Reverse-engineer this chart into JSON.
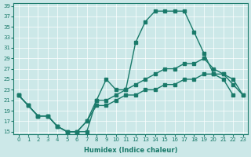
{
  "xlabel": "Humidex (Indice chaleur)",
  "bg_color": "#cce8e8",
  "line_color": "#1a7a6a",
  "xlim": [
    0,
    23
  ],
  "ylim": [
    15,
    39
  ],
  "xticks": [
    0,
    1,
    2,
    3,
    4,
    5,
    6,
    7,
    8,
    9,
    10,
    11,
    12,
    13,
    14,
    15,
    16,
    17,
    18,
    19,
    20,
    21,
    22,
    23
  ],
  "yticks": [
    15,
    17,
    19,
    21,
    23,
    25,
    27,
    29,
    31,
    33,
    35,
    37,
    39
  ],
  "line1_x": [
    0,
    1,
    2,
    3,
    4,
    5,
    6,
    7,
    8,
    9,
    10,
    11,
    12,
    13,
    14,
    15,
    16,
    17,
    18,
    19,
    20,
    21,
    22,
    23
  ],
  "line1_y": [
    22,
    20,
    18,
    18,
    16,
    15,
    15,
    15,
    21,
    25,
    23,
    23,
    32,
    36,
    38,
    38,
    38,
    38,
    34,
    30,
    26,
    25,
    22,
    null
  ],
  "line2_x": [
    0,
    1,
    2,
    3,
    4,
    5,
    6,
    7,
    8,
    9,
    10,
    11,
    12,
    13,
    14,
    15,
    16,
    17,
    18,
    19,
    20,
    21,
    22,
    23
  ],
  "line2_y": [
    22,
    20,
    18,
    18,
    16,
    15,
    15,
    17,
    21,
    21,
    22,
    23,
    24,
    25,
    26,
    27,
    27,
    28,
    28,
    29,
    27,
    26,
    24,
    22
  ],
  "line3_x": [
    0,
    1,
    2,
    3,
    4,
    5,
    6,
    7,
    8,
    9,
    10,
    11,
    12,
    13,
    14,
    15,
    16,
    17,
    18,
    19,
    20,
    21,
    22,
    23
  ],
  "line3_y": [
    22,
    20,
    18,
    18,
    16,
    15,
    15,
    17,
    20,
    20,
    21,
    22,
    22,
    23,
    23,
    24,
    24,
    25,
    25,
    26,
    26,
    26,
    25,
    22
  ]
}
